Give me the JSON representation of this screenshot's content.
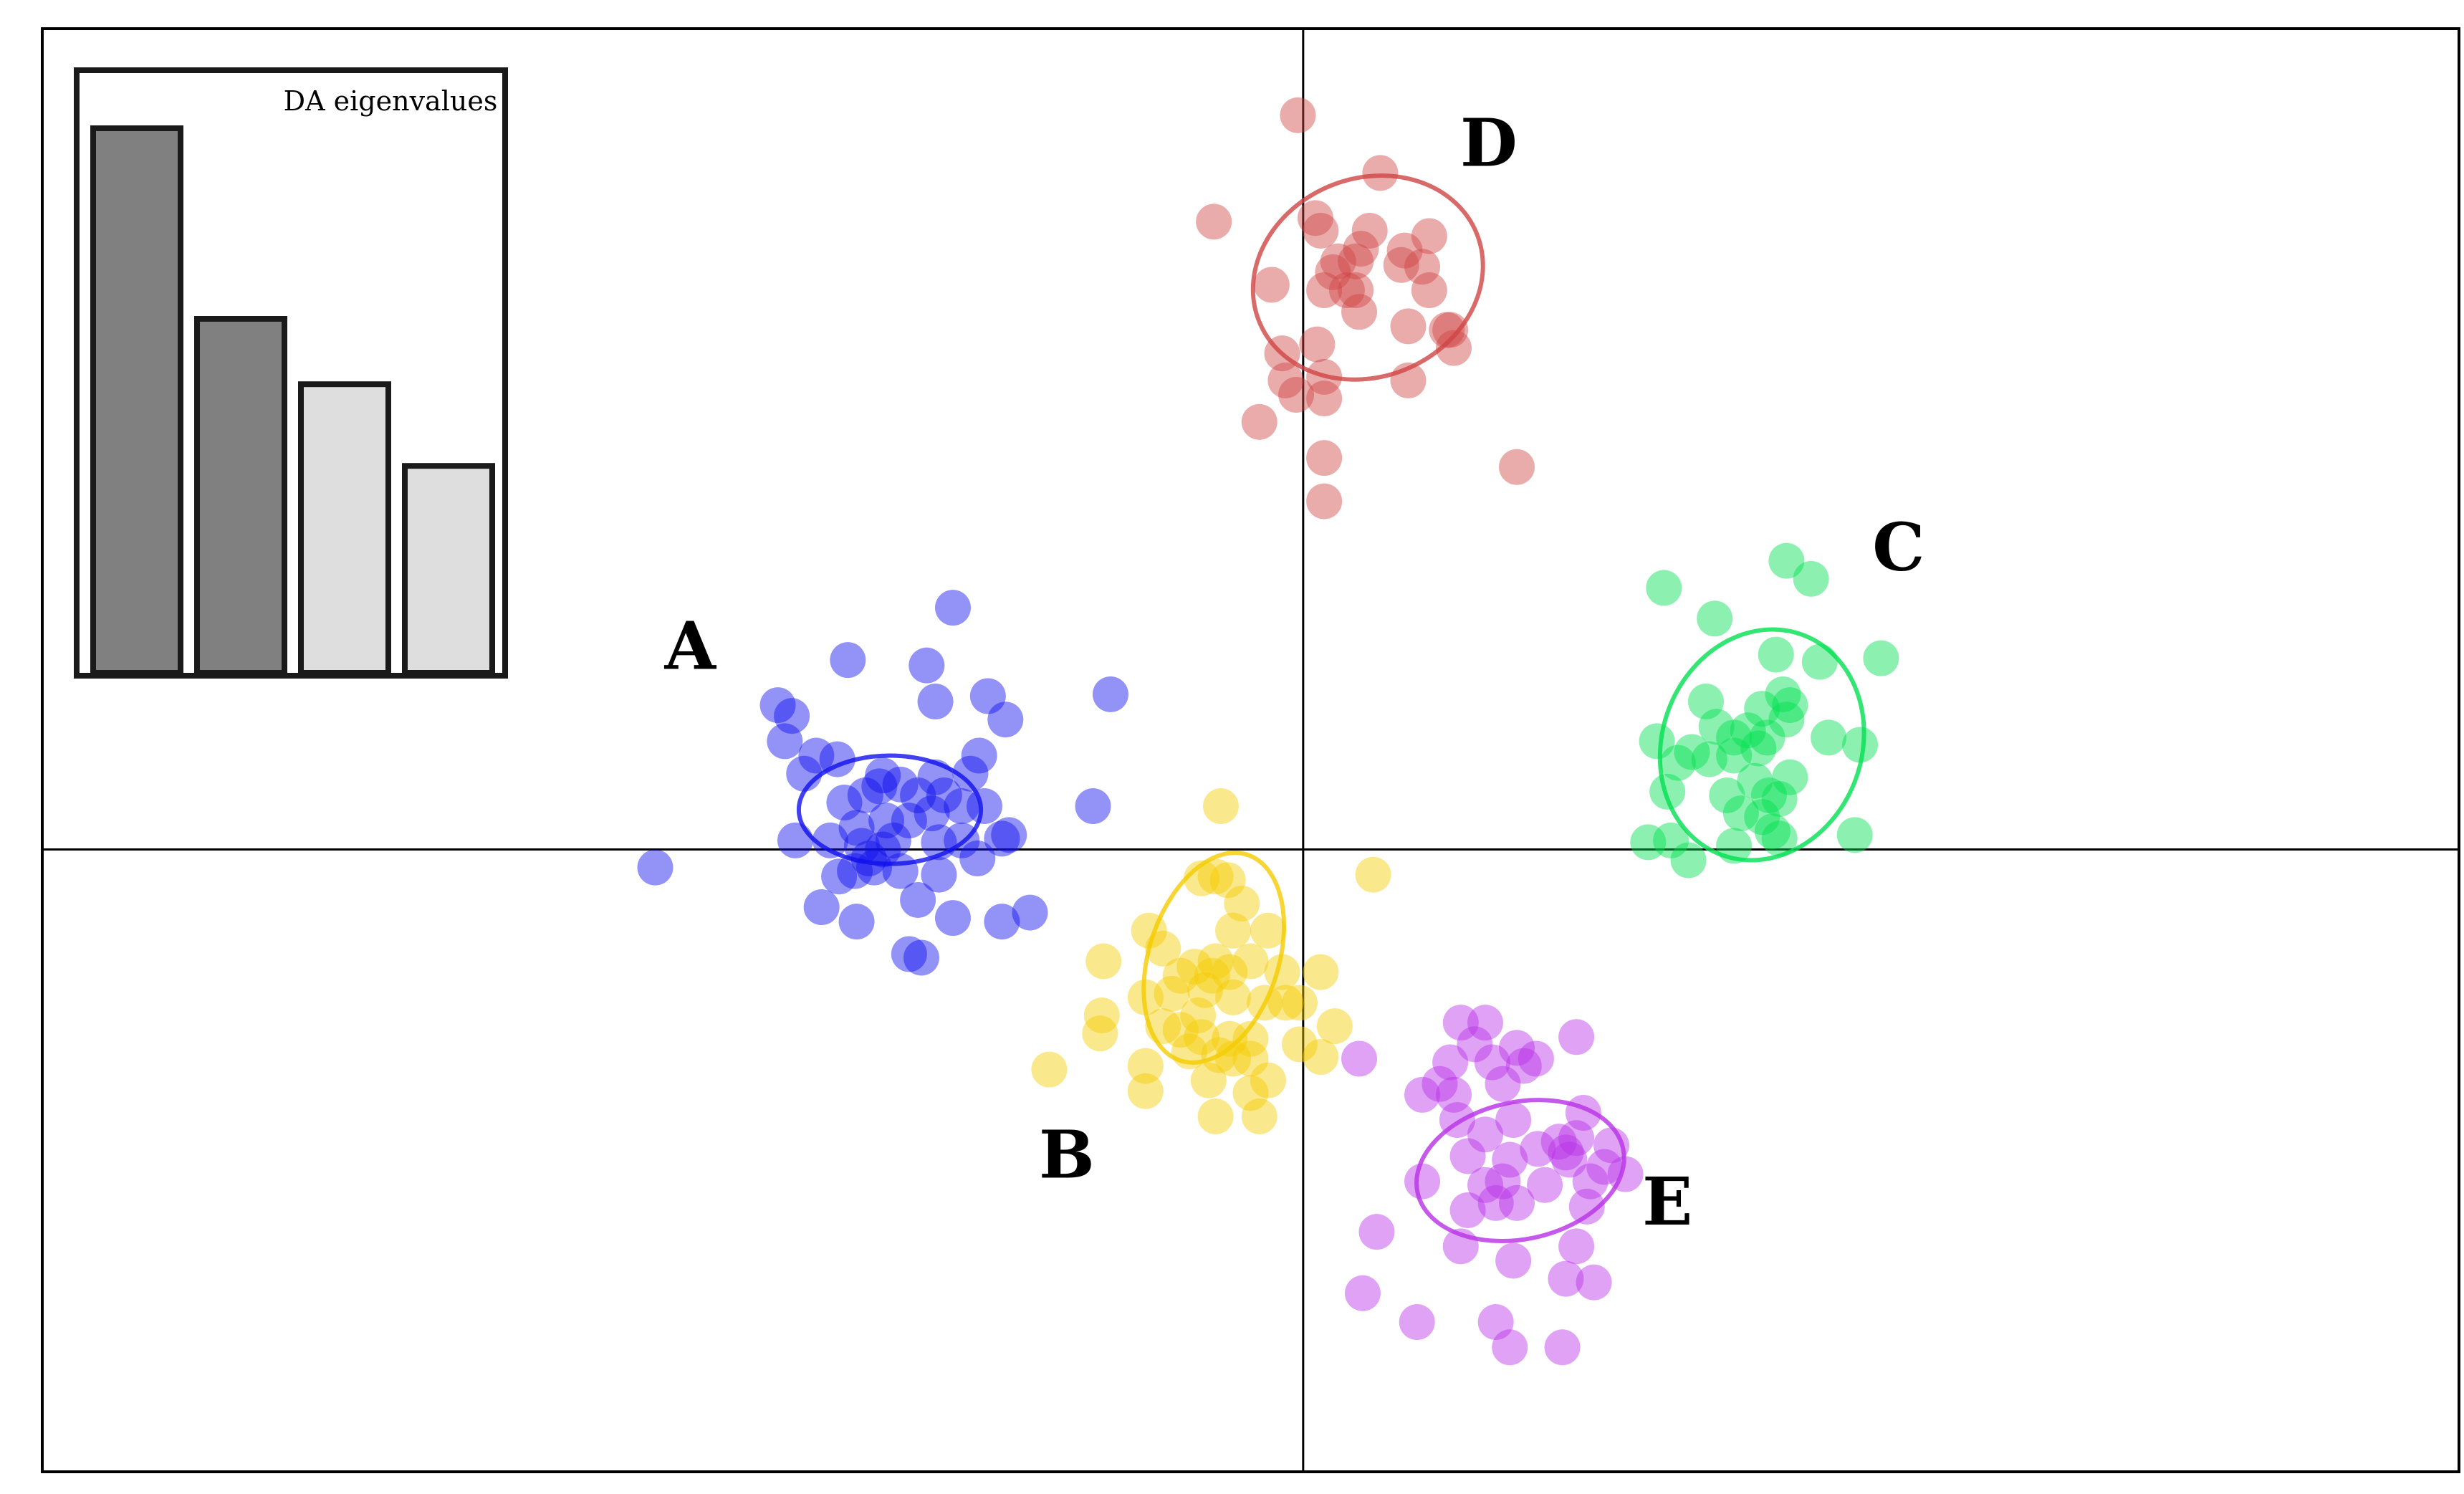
{
  "chart_data": {
    "type": "scatter",
    "title": "",
    "xlabel": "",
    "ylabel": "",
    "xlim": [
      -7.2,
      6.6
    ],
    "ylim": [
      -3.45,
      4.55
    ],
    "grid": false,
    "axes_lines_at_origin": true,
    "legend": "none",
    "point_alpha": 0.45,
    "series": [
      {
        "name": "A",
        "color": "#1010ee",
        "label_pos": [
          -3.5,
          1.0
        ],
        "ellipse": {
          "cx": -2.36,
          "cy": 0.22,
          "rx": 0.52,
          "ry": 0.3,
          "angle": 0
        },
        "points": [
          [
            -2.0,
            1.34
          ],
          [
            -2.15,
            1.02
          ],
          [
            -2.6,
            1.05
          ],
          [
            -2.1,
            0.82
          ],
          [
            -1.7,
            0.72
          ],
          [
            -1.8,
            0.85
          ],
          [
            -1.1,
            0.86
          ],
          [
            -3.0,
            0.8
          ],
          [
            -2.92,
            0.74
          ],
          [
            -2.96,
            0.6
          ],
          [
            -2.78,
            0.52
          ],
          [
            -2.66,
            0.5
          ],
          [
            -2.85,
            0.42
          ],
          [
            -2.4,
            0.41
          ],
          [
            -2.1,
            0.4
          ],
          [
            -1.85,
            0.52
          ],
          [
            -1.9,
            0.42
          ],
          [
            -2.3,
            0.36
          ],
          [
            -2.42,
            0.35
          ],
          [
            -2.5,
            0.3
          ],
          [
            -2.2,
            0.3
          ],
          [
            -2.05,
            0.3
          ],
          [
            -2.12,
            0.2
          ],
          [
            -1.95,
            0.24
          ],
          [
            -1.82,
            0.24
          ],
          [
            -2.62,
            0.26
          ],
          [
            -2.55,
            0.12
          ],
          [
            -2.38,
            0.16
          ],
          [
            -2.25,
            0.16
          ],
          [
            -2.9,
            0.05
          ],
          [
            -2.7,
            0.05
          ],
          [
            -2.52,
            0.02
          ],
          [
            -2.4,
            0.0
          ],
          [
            -2.34,
            0.05
          ],
          [
            -2.08,
            0.04
          ],
          [
            -1.95,
            0.05
          ],
          [
            -1.72,
            0.06
          ],
          [
            -1.68,
            0.08
          ],
          [
            -1.86,
            -0.05
          ],
          [
            -2.48,
            -0.05
          ],
          [
            -2.56,
            -0.12
          ],
          [
            -2.45,
            -0.1
          ],
          [
            -2.65,
            -0.15
          ],
          [
            -2.3,
            -0.12
          ],
          [
            -2.08,
            -0.14
          ],
          [
            -2.2,
            -0.28
          ],
          [
            -3.7,
            -0.1
          ],
          [
            -2.75,
            -0.32
          ],
          [
            -2.55,
            -0.4
          ],
          [
            -2.0,
            -0.38
          ],
          [
            -1.72,
            -0.4
          ],
          [
            -1.56,
            -0.35
          ],
          [
            -2.25,
            -0.58
          ],
          [
            -2.18,
            -0.6
          ],
          [
            -1.2,
            0.24
          ]
        ]
      },
      {
        "name": "B",
        "color": "#f5cc00",
        "label_pos": [
          -1.35,
          -1.82
        ],
        "ellipse": {
          "cx": -0.51,
          "cy": -0.6,
          "rx": 0.37,
          "ry": 0.6,
          "angle": 18
        },
        "points": [
          [
            -0.47,
            0.24
          ],
          [
            -0.58,
            -0.16
          ],
          [
            -0.5,
            -0.15
          ],
          [
            -0.43,
            -0.17
          ],
          [
            0.4,
            -0.14
          ],
          [
            -0.35,
            -0.3
          ],
          [
            -0.4,
            -0.45
          ],
          [
            -0.2,
            -0.45
          ],
          [
            -0.88,
            -0.45
          ],
          [
            -0.8,
            -0.55
          ],
          [
            -1.14,
            -0.62
          ],
          [
            -0.62,
            -0.65
          ],
          [
            -0.52,
            -0.7
          ],
          [
            -0.42,
            -0.68
          ],
          [
            -0.5,
            -0.62
          ],
          [
            -0.3,
            -0.62
          ],
          [
            -0.12,
            -0.68
          ],
          [
            0.1,
            -0.68
          ],
          [
            -0.7,
            -0.7
          ],
          [
            -0.75,
            -0.8
          ],
          [
            -0.9,
            -0.82
          ],
          [
            -0.4,
            -0.82
          ],
          [
            -0.56,
            -0.78
          ],
          [
            -0.22,
            -0.85
          ],
          [
            -0.1,
            -0.85
          ],
          [
            -0.02,
            -0.85
          ],
          [
            -0.6,
            -0.92
          ],
          [
            -0.8,
            -0.98
          ],
          [
            -1.15,
            -0.92
          ],
          [
            -1.16,
            -1.02
          ],
          [
            -0.7,
            -1.0
          ],
          [
            -0.58,
            -1.04
          ],
          [
            -0.42,
            -1.05
          ],
          [
            -0.3,
            -1.05
          ],
          [
            0.18,
            -0.98
          ],
          [
            -0.02,
            -1.08
          ],
          [
            -0.65,
            -1.12
          ],
          [
            -0.48,
            -1.14
          ],
          [
            -0.4,
            -1.16
          ],
          [
            -0.3,
            -1.16
          ],
          [
            -0.9,
            -1.2
          ],
          [
            -1.45,
            -1.22
          ],
          [
            -0.54,
            -1.28
          ],
          [
            -0.2,
            -1.28
          ],
          [
            -0.9,
            -1.34
          ],
          [
            -0.5,
            -1.48
          ],
          [
            -0.25,
            -1.48
          ],
          [
            -0.3,
            -1.35
          ],
          [
            0.1,
            -1.15
          ]
        ]
      },
      {
        "name": "C",
        "color": "#00e050",
        "label_pos": [
          3.4,
          1.55
        ],
        "ellipse": {
          "cx": 2.62,
          "cy": 0.58,
          "rx": 0.57,
          "ry": 0.65,
          "angle": 20
        },
        "points": [
          [
            2.76,
            1.6
          ],
          [
            2.9,
            1.5
          ],
          [
            2.06,
            1.45
          ],
          [
            2.35,
            1.28
          ],
          [
            2.7,
            1.08
          ],
          [
            2.95,
            1.04
          ],
          [
            3.3,
            1.06
          ],
          [
            2.3,
            0.82
          ],
          [
            2.62,
            0.78
          ],
          [
            2.74,
            0.86
          ],
          [
            2.78,
            0.8
          ],
          [
            2.76,
            0.72
          ],
          [
            2.65,
            0.62
          ],
          [
            2.54,
            0.66
          ],
          [
            2.46,
            0.62
          ],
          [
            2.36,
            0.68
          ],
          [
            3.0,
            0.62
          ],
          [
            3.18,
            0.58
          ],
          [
            2.02,
            0.6
          ],
          [
            2.22,
            0.54
          ],
          [
            2.46,
            0.52
          ],
          [
            2.6,
            0.56
          ],
          [
            2.14,
            0.48
          ],
          [
            2.32,
            0.5
          ],
          [
            2.78,
            0.4
          ],
          [
            2.58,
            0.38
          ],
          [
            2.08,
            0.32
          ],
          [
            2.42,
            0.3
          ],
          [
            2.66,
            0.3
          ],
          [
            2.72,
            0.28
          ],
          [
            2.5,
            0.2
          ],
          [
            2.62,
            0.18
          ],
          [
            2.68,
            0.1
          ],
          [
            1.97,
            0.04
          ],
          [
            2.1,
            0.05
          ],
          [
            2.46,
            0.02
          ],
          [
            2.72,
            0.06
          ],
          [
            3.15,
            0.08
          ],
          [
            2.2,
            -0.06
          ]
        ]
      },
      {
        "name": "D",
        "color": "#d04545",
        "label_pos": [
          1.06,
          3.79
        ],
        "ellipse": {
          "cx": 0.37,
          "cy": 3.17,
          "rx": 0.67,
          "ry": 0.55,
          "angle": -22
        },
        "points": [
          [
            -0.03,
            4.07
          ],
          [
            0.44,
            3.75
          ],
          [
            0.07,
            3.5
          ],
          [
            0.1,
            3.43
          ],
          [
            0.38,
            3.43
          ],
          [
            0.72,
            3.4
          ],
          [
            -0.51,
            3.48
          ],
          [
            0.58,
            3.32
          ],
          [
            0.33,
            3.33
          ],
          [
            0.3,
            3.26
          ],
          [
            0.56,
            3.24
          ],
          [
            0.68,
            3.23
          ],
          [
            0.2,
            3.26
          ],
          [
            0.17,
            3.2
          ],
          [
            -0.18,
            3.13
          ],
          [
            0.25,
            3.1
          ],
          [
            0.12,
            3.1
          ],
          [
            0.3,
            3.1
          ],
          [
            0.72,
            3.1
          ],
          [
            0.32,
            2.98
          ],
          [
            0.6,
            2.9
          ],
          [
            0.82,
            2.88
          ],
          [
            0.08,
            2.8
          ],
          [
            0.86,
            2.78
          ],
          [
            0.84,
            2.88
          ],
          [
            -0.12,
            2.75
          ],
          [
            -0.1,
            2.6
          ],
          [
            0.12,
            2.62
          ],
          [
            0.6,
            2.6
          ],
          [
            -0.04,
            2.52
          ],
          [
            0.12,
            2.5
          ],
          [
            -0.25,
            2.37
          ],
          [
            0.12,
            2.17
          ],
          [
            1.22,
            2.12
          ],
          [
            0.12,
            1.93
          ]
        ]
      },
      {
        "name": "E",
        "color": "#b830e6",
        "label_pos": [
          2.08,
          -2.08
        ],
        "ellipse": {
          "cx": 1.24,
          "cy": -1.78,
          "rx": 0.6,
          "ry": 0.38,
          "angle": -12
        },
        "points": [
          [
            0.9,
            -0.96
          ],
          [
            1.04,
            -0.96
          ],
          [
            1.56,
            -1.04
          ],
          [
            0.98,
            -1.08
          ],
          [
            1.22,
            -1.1
          ],
          [
            1.33,
            -1.16
          ],
          [
            1.08,
            -1.18
          ],
          [
            0.84,
            -1.18
          ],
          [
            0.32,
            -1.16
          ],
          [
            1.26,
            -1.2
          ],
          [
            1.14,
            -1.3
          ],
          [
            0.68,
            -1.36
          ],
          [
            0.86,
            -1.36
          ],
          [
            0.78,
            -1.3
          ],
          [
            0.88,
            -1.5
          ],
          [
            1.2,
            -1.5
          ],
          [
            1.6,
            -1.46
          ],
          [
            1.04,
            -1.58
          ],
          [
            1.46,
            -1.62
          ],
          [
            1.5,
            -1.68
          ],
          [
            1.76,
            -1.64
          ],
          [
            0.94,
            -1.7
          ],
          [
            1.18,
            -1.72
          ],
          [
            1.34,
            -1.66
          ],
          [
            1.52,
            -1.72
          ],
          [
            1.56,
            -1.6
          ],
          [
            1.72,
            -1.76
          ],
          [
            0.68,
            -1.84
          ],
          [
            1.04,
            -1.86
          ],
          [
            1.14,
            -1.84
          ],
          [
            1.38,
            -1.86
          ],
          [
            1.64,
            -1.84
          ],
          [
            1.84,
            -1.8
          ],
          [
            1.1,
            -1.96
          ],
          [
            1.22,
            -1.96
          ],
          [
            0.94,
            -2.0
          ],
          [
            1.62,
            -1.98
          ],
          [
            0.42,
            -2.12
          ],
          [
            0.9,
            -2.2
          ],
          [
            1.56,
            -2.2
          ],
          [
            1.2,
            -2.28
          ],
          [
            1.5,
            -2.38
          ],
          [
            1.66,
            -2.4
          ],
          [
            0.34,
            -2.46
          ],
          [
            0.65,
            -2.62
          ],
          [
            1.1,
            -2.62
          ],
          [
            1.18,
            -2.76
          ],
          [
            1.48,
            -2.76
          ]
        ]
      }
    ],
    "inset": {
      "title": "DA eigenvalues",
      "type": "bar",
      "values": [
        1.0,
        0.65,
        0.53,
        0.38
      ],
      "retained": [
        true,
        true,
        false,
        false
      ],
      "retained_color": "#808080",
      "dropped_color": "#dedede"
    }
  }
}
